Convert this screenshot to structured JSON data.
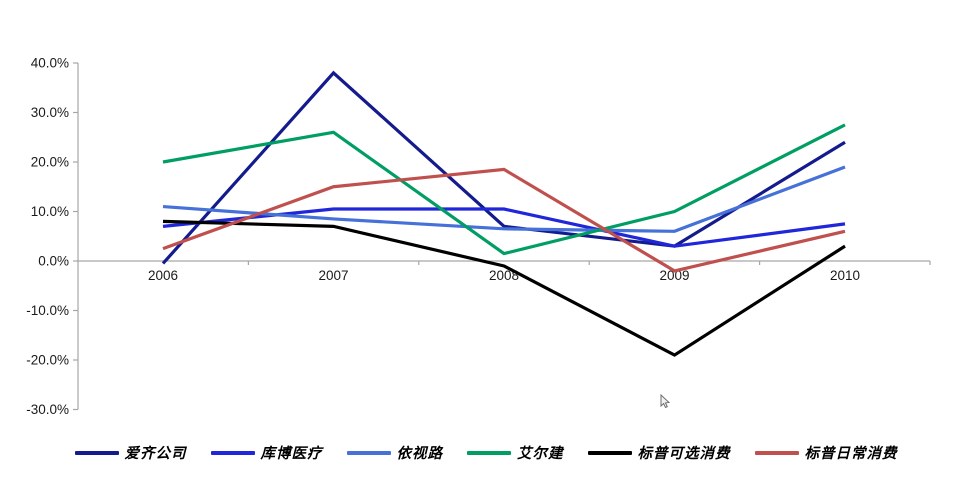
{
  "chart_data": {
    "type": "line",
    "title": "",
    "xlabel": "",
    "ylabel": "",
    "categories": [
      "2006",
      "2007",
      "2008",
      "2009",
      "2010"
    ],
    "series": [
      {
        "name": "爱齐公司",
        "color": "#141B8D",
        "values": [
          -0.5,
          38,
          7,
          3,
          24
        ]
      },
      {
        "name": "库博医疗",
        "color": "#2026D9",
        "values": [
          7,
          10.5,
          10.5,
          3,
          7.5
        ]
      },
      {
        "name": "依视路",
        "color": "#4671D8",
        "values": [
          11,
          8.5,
          6.5,
          6,
          19
        ]
      },
      {
        "name": "艾尔建",
        "color": "#009E63",
        "values": [
          20,
          26,
          1.5,
          10,
          27.5
        ]
      },
      {
        "name": "标普可选消费",
        "color": "#000000",
        "values": [
          8,
          7,
          -1,
          -19,
          3
        ]
      },
      {
        "name": "标普日常消费",
        "color": "#C0504D",
        "values": [
          2.5,
          15,
          18.5,
          -2,
          6
        ]
      }
    ],
    "y_ticks": [
      "40.0%",
      "30.0%",
      "20.0%",
      "10.0%",
      "0.0%",
      "-10.0%",
      "-20.0%",
      "-30.0%"
    ],
    "y_tick_values": [
      40,
      30,
      20,
      10,
      0,
      -10,
      -20,
      -30
    ],
    "ylim": [
      -30,
      40
    ],
    "grid": false,
    "legend_position": "bottom",
    "axis_color": "#A6A6A6",
    "tick_label_color": "#1A1A1A"
  }
}
